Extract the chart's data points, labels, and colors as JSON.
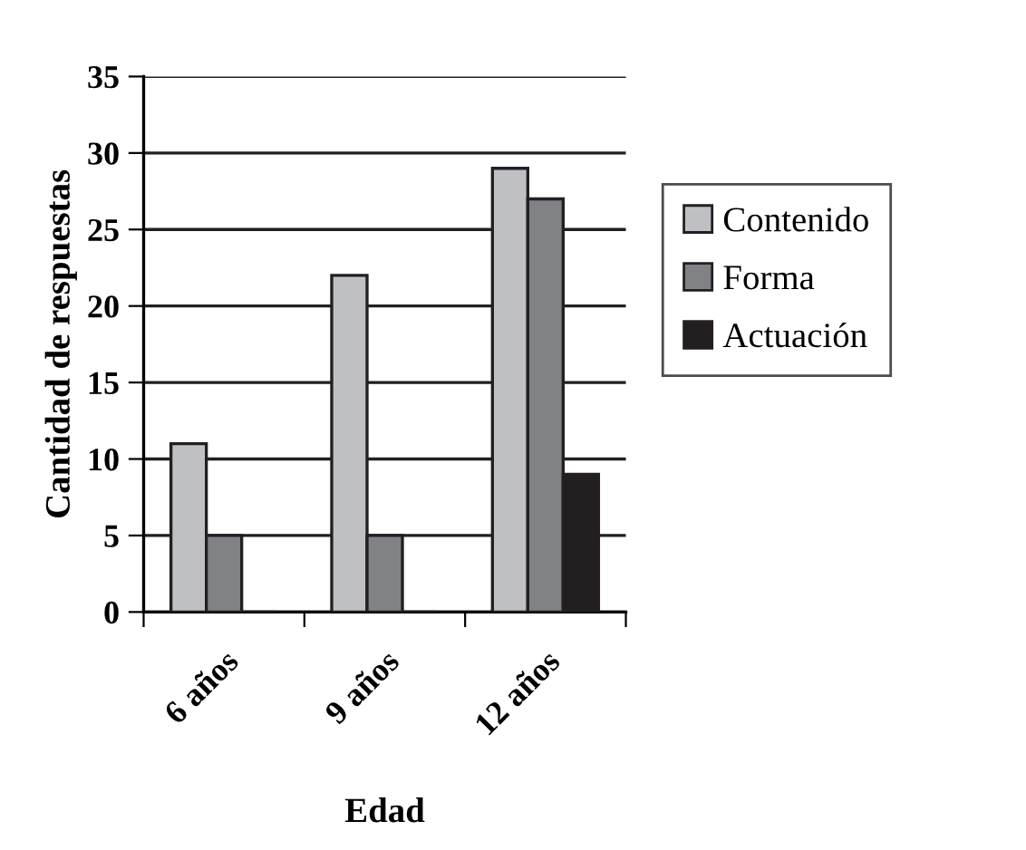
{
  "chart_data": {
    "type": "bar",
    "xlabel": "Edad",
    "ylabel": "Cantidad de respuestas",
    "categories": [
      "6 años",
      "9 años",
      "12 años"
    ],
    "series": [
      {
        "name": "Contenido",
        "color": "#bfc0c4",
        "values": [
          11,
          22,
          29
        ]
      },
      {
        "name": "Forma",
        "color": "#808285",
        "values": [
          5,
          5,
          27
        ]
      },
      {
        "name": "Actuación",
        "color": "#231f20",
        "values": [
          0,
          0,
          9
        ]
      }
    ],
    "ylim": [
      0,
      35
    ],
    "yticks": [
      0,
      5,
      10,
      15,
      20,
      25,
      30,
      35
    ],
    "grid": "y",
    "legend": "right"
  }
}
